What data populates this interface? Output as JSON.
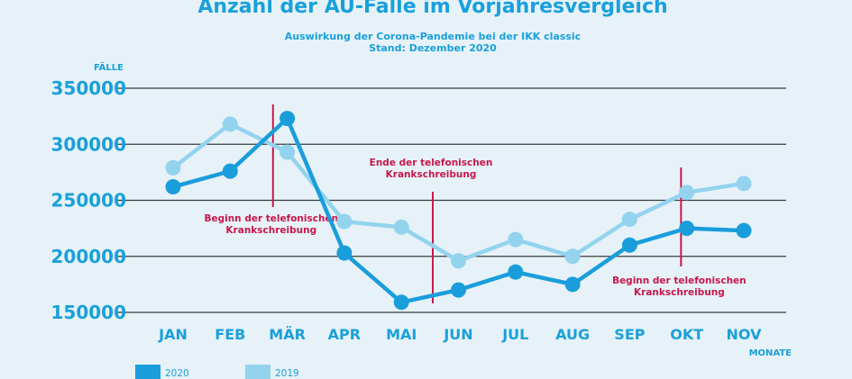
{
  "chart_data": {
    "type": "line",
    "title": "Anzahl der AU-Fälle im Vorjahresvergleich",
    "subtitle": [
      "Auswirkung der Corona-Pandemie bei der IKK classic",
      "Stand: Dezember 2020"
    ],
    "ylabel": "FÄLLE",
    "xlabel": "MONATE",
    "categories": [
      "JAN",
      "FEB",
      "MÄR",
      "APR",
      "MAI",
      "JUN",
      "JUL",
      "AUG",
      "SEP",
      "OKT",
      "NOV"
    ],
    "yticks": [
      "350000",
      "300000",
      "250000",
      "200000",
      "150000"
    ],
    "ylim": [
      150000,
      350000
    ],
    "grid": true,
    "legend_position": "bottom-left",
    "series": [
      {
        "name": "2020",
        "color": "#1a9ddb",
        "values": [
          262000,
          276000,
          323000,
          203000,
          159000,
          170000,
          186000,
          175000,
          210000,
          225000,
          223000
        ]
      },
      {
        "name": "2019",
        "color": "#93d3ee",
        "values": [
          279000,
          318000,
          293000,
          231000,
          226000,
          196000,
          215000,
          200000,
          233000,
          257000,
          265000
        ]
      }
    ],
    "annotations": [
      {
        "position": 1.75,
        "lines": [
          "Beginn der telefonischen",
          "Krankschreibung"
        ]
      },
      {
        "position": 4.55,
        "lines": [
          "Ende der telefonischen",
          "Krankschreibung"
        ]
      },
      {
        "position": 8.9,
        "lines": [
          "Beginn der telefonischen",
          "Krankschreibung"
        ]
      }
    ]
  }
}
